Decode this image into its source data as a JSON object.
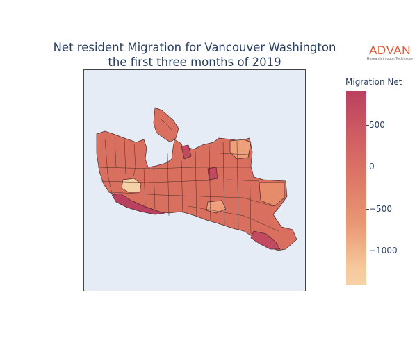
{
  "title": {
    "line1": "Net resident Migration for Vancouver Washington",
    "line2": "the first three months of 2019"
  },
  "logo": {
    "word": "ADVAN",
    "tagline": "Research through Technology",
    "color": "#e2522e"
  },
  "colorbar": {
    "title": "Migration Net",
    "ticks": [
      {
        "label": "500",
        "value": 500
      },
      {
        "label": "0",
        "value": 0
      },
      {
        "label": "−500",
        "value": -500
      },
      {
        "label": "−1000",
        "value": -1000
      }
    ],
    "min": -1400,
    "max": 900,
    "colors": [
      "#f7d1a6",
      "#f6c99c",
      "#ea9a76",
      "#dd7766",
      "#cc5a62",
      "#b9405f"
    ]
  },
  "map": {
    "background": "#e5ecf6",
    "region_fill": "#d9705f",
    "region_stroke": "#4a2a2a"
  }
}
